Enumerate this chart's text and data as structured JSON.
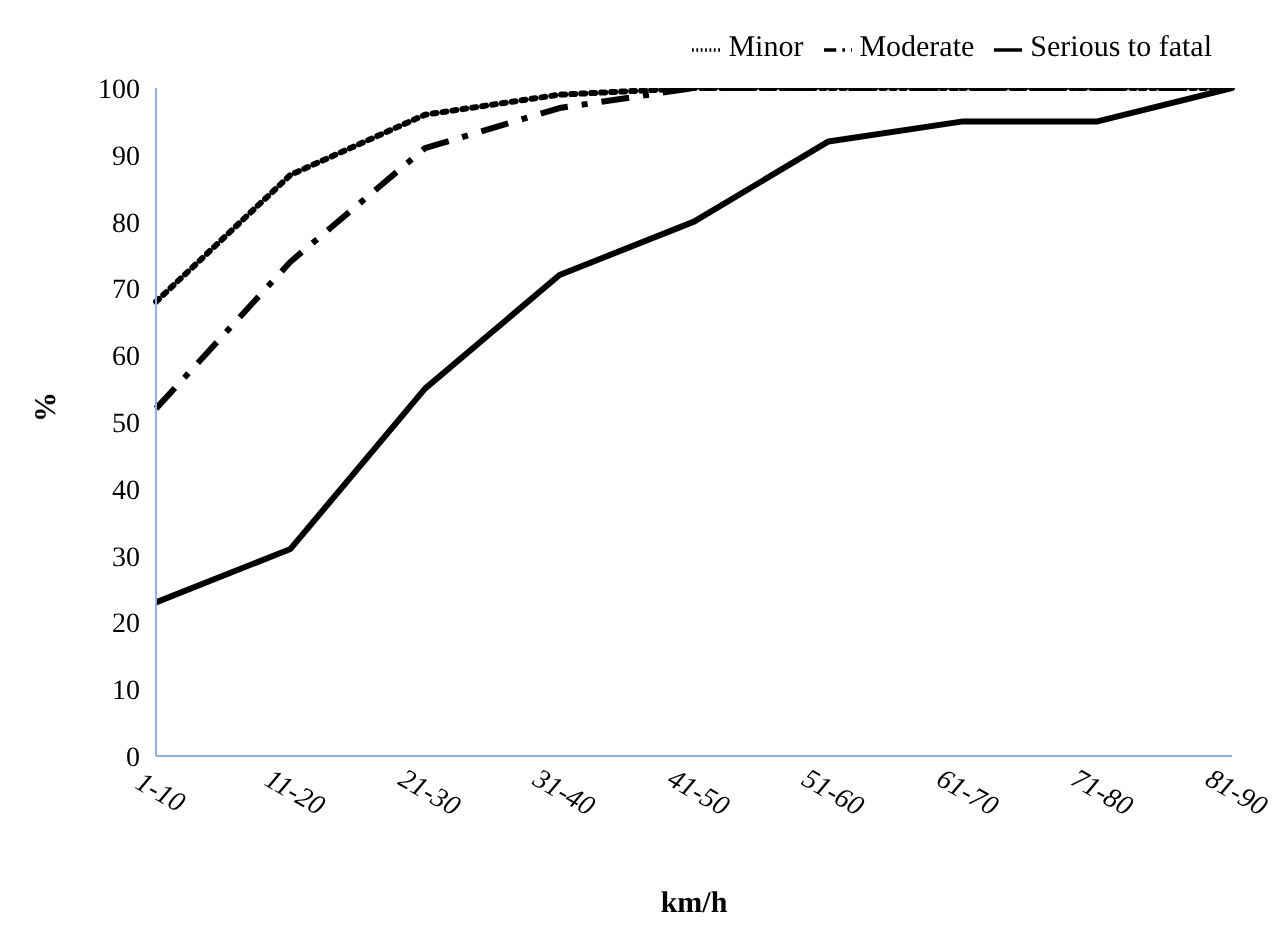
{
  "chart_data": {
    "type": "line",
    "xlabel": "km/h",
    "ylabel": "%",
    "categories": [
      "1-10",
      "11-20",
      "21-30",
      "31-40",
      "41-50",
      "51-60",
      "61-70",
      "71-80",
      "81-90"
    ],
    "series": [
      {
        "name": "Minor",
        "color": "#000000",
        "line_style": "dotted",
        "values": [
          68,
          87,
          96,
          99,
          100,
          100,
          100,
          100,
          100
        ]
      },
      {
        "name": "Moderate",
        "color": "#000000",
        "line_style": "dashdot",
        "values": [
          52,
          74,
          91,
          97,
          100,
          100,
          100,
          100,
          100
        ]
      },
      {
        "name": "Serious to fatal",
        "color": "#000000",
        "line_style": "solid",
        "values": [
          23,
          31,
          55,
          72,
          80,
          92,
          95,
          95,
          100
        ]
      }
    ],
    "ylim": [
      0,
      100
    ],
    "yticks": [
      0,
      10,
      20,
      30,
      40,
      50,
      60,
      70,
      80,
      90,
      100
    ],
    "grid": false,
    "legend": "top",
    "marker": "none"
  }
}
